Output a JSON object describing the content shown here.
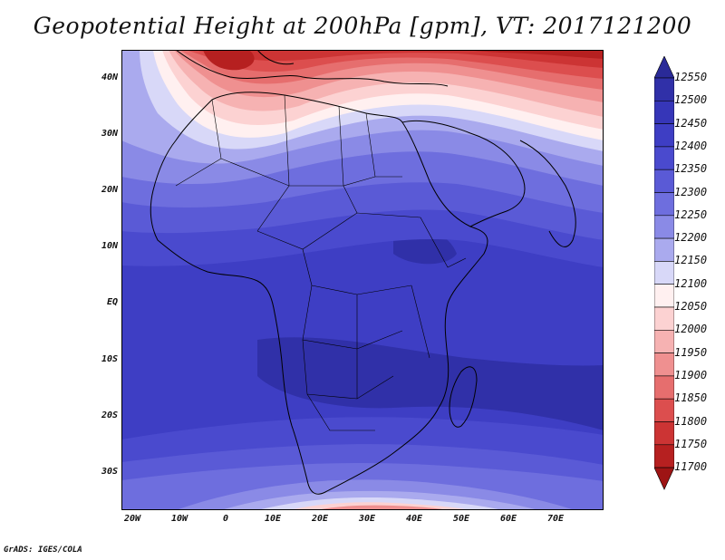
{
  "title": "Geopotential Height at 200hPa [gpm], VT: 2017121200",
  "footer": "GrADS: IGES/COLA",
  "map": {
    "lat_labels": [
      "40N",
      "30N",
      "20N",
      "10N",
      "EQ",
      "10S",
      "20S",
      "30S"
    ],
    "lon_labels": [
      "20W",
      "10W",
      "0",
      "10E",
      "20E",
      "30E",
      "40E",
      "50E",
      "60E",
      "70E"
    ]
  },
  "colorbar": {
    "levels": [
      "12550",
      "12500",
      "12450",
      "12400",
      "12350",
      "12300",
      "12250",
      "12200",
      "12150",
      "12100",
      "12050",
      "12000",
      "11950",
      "11900",
      "11850",
      "11800",
      "11750",
      "11700"
    ],
    "colors": [
      "#2a2a98",
      "#3030a8",
      "#3636b8",
      "#3e3ec4",
      "#4a4ace",
      "#5a5ad6",
      "#6e6ede",
      "#8a8ae6",
      "#aaaaee",
      "#d8d8f8",
      "#fff0f0",
      "#fcd2d2",
      "#f6b2b2",
      "#ef9090",
      "#e66e6e",
      "#dc4e4e",
      "#cc3434",
      "#b62020",
      "#9e1414"
    ],
    "unit": "gpm"
  }
}
